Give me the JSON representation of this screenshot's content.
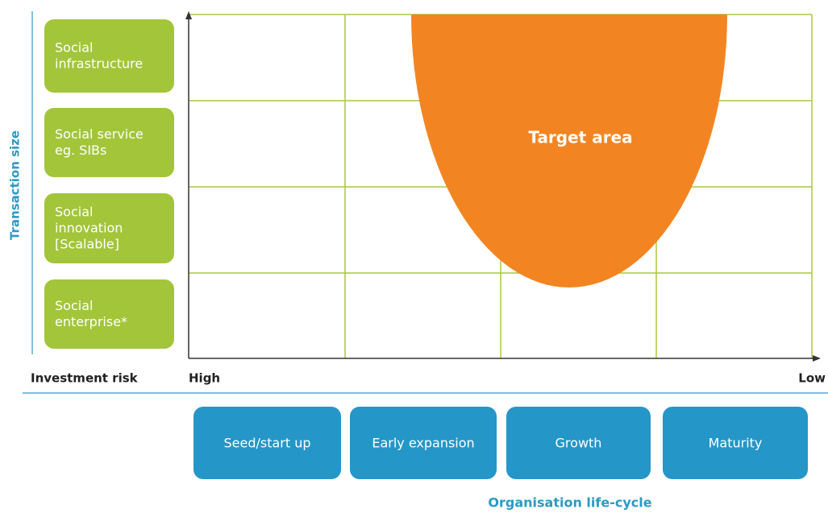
{
  "y_axis_label": "Transaction size",
  "transaction_types": [
    "Social infrastructure",
    "Social service eg. SIBs",
    "Social innovation [Scalable]",
    "Social enterprise*"
  ],
  "target_label": "Target area",
  "risk_label": "Investment risk",
  "risk_high": "High",
  "risk_low": "Low",
  "life_cycle_stages": [
    "Seed/start up",
    "Early expansion",
    "Growth",
    "Maturity"
  ],
  "x_axis_label": "Organisation life-cycle"
}
